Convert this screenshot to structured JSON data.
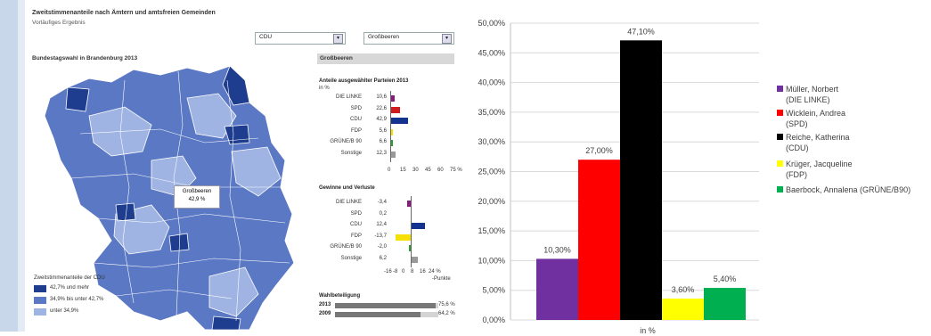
{
  "left_panel": {
    "title": "Zweitstimmenanteile nach Ämtern und amtsfreien Gemeinden",
    "subtitle": "Vorläufiges Ergebnis",
    "party_select": "CDU",
    "municipality_select": "Großbeeren",
    "map_title": "Bundestagswahl in Brandenburg 2013",
    "callout": {
      "name": "Großbeeren",
      "value": "42,9 %"
    },
    "legend": {
      "title": "Zweitstimmenanteile der CDU",
      "items": [
        {
          "label": "42,7% und mehr",
          "color": "#1f3d8f"
        },
        {
          "label": "34,9% bis unter 42,7%",
          "color": "#5b78c4"
        },
        {
          "label": "unter 34,9%",
          "color": "#9fb4e2"
        }
      ]
    },
    "side_header": "Großbeeren",
    "shares": {
      "title": "Anteile ausgewählter Parteien 2013",
      "unit": "in %",
      "rows": [
        {
          "party": "DIE LINKE",
          "value": "10,6",
          "num": 10.6,
          "color": "#8b1a7f"
        },
        {
          "party": "SPD",
          "value": "22,6",
          "num": 22.6,
          "color": "#d01c1c"
        },
        {
          "party": "CDU",
          "value": "42,9",
          "num": 42.9,
          "color": "#14338f"
        },
        {
          "party": "FDP",
          "value": "5,6",
          "num": 5.6,
          "color": "#f5e000"
        },
        {
          "party": "GRÜNE/B 90",
          "value": "6,6",
          "num": 6.6,
          "color": "#2a9d2a"
        },
        {
          "party": "Sonstige",
          "value": "12,3",
          "num": 12.3,
          "color": "#999999"
        }
      ],
      "ticks": [
        "0",
        "15",
        "30",
        "45",
        "60",
        "75 %"
      ]
    },
    "changes": {
      "title": "Gewinne und Verluste",
      "rows": [
        {
          "party": "DIE LINKE",
          "value": "-3,4",
          "num": -3.4,
          "color": "#8b1a7f"
        },
        {
          "party": "SPD",
          "value": "0,2",
          "num": 0.2,
          "color": "#d01c1c"
        },
        {
          "party": "CDU",
          "value": "12,4",
          "num": 12.4,
          "color": "#14338f"
        },
        {
          "party": "FDP",
          "value": "-13,7",
          "num": -13.7,
          "color": "#f5e000"
        },
        {
          "party": "GRÜNE/B 90",
          "value": "-2,0",
          "num": -2.0,
          "color": "#2a9d2a"
        },
        {
          "party": "Sonstige",
          "value": "6,2",
          "num": 6.2,
          "color": "#999999"
        }
      ],
      "ticks": [
        "-16",
        "-8",
        "0",
        "8",
        "16",
        "24 %"
      ],
      "unit": "-Punkte"
    },
    "turnout": {
      "title": "Wahlbeteiligung",
      "rows": [
        {
          "year": "2013",
          "value": "75,6 %",
          "num": 75.6
        },
        {
          "year": "2009",
          "value": "64,2 %",
          "num": 64.2
        }
      ]
    }
  },
  "chart_data": {
    "type": "bar",
    "categories": [
      "Müller, Norbert (DIE LINKE)",
      "Wicklein, Andrea (SPD)",
      "Reiche, Katherina (CDU)",
      "Krüger, Jacqueline (FDP)",
      "Baerbock, Annalena (GRÜNE/B90)"
    ],
    "values": [
      10.3,
      27.0,
      47.1,
      3.6,
      5.4
    ],
    "data_labels": [
      "10,30%",
      "27,00%",
      "47,10%",
      "3,60%",
      "5,40%"
    ],
    "colors": [
      "#7030a0",
      "#ff0000",
      "#000000",
      "#ffff00",
      "#00b050"
    ],
    "legend": [
      {
        "line1": "Müller, Norbert",
        "line2": "(DIE LINKE)"
      },
      {
        "line1": "Wicklein, Andrea",
        "line2": "(SPD)"
      },
      {
        "line1": "Reiche, Katherina",
        "line2": "(CDU)"
      },
      {
        "line1": "Krüger, Jacqueline",
        "line2": "(FDP)"
      },
      {
        "line1": "Baerbock, Annalena (GRÜNE/B90)",
        "line2": ""
      }
    ],
    "yticks": [
      "0,00%",
      "5,00%",
      "10,00%",
      "15,00%",
      "20,00%",
      "25,00%",
      "30,00%",
      "35,00%",
      "40,00%",
      "45,00%",
      "50,00%"
    ],
    "ylim": [
      0,
      50
    ],
    "xlabel": "in %",
    "grid": true,
    "legend_position": "right"
  }
}
